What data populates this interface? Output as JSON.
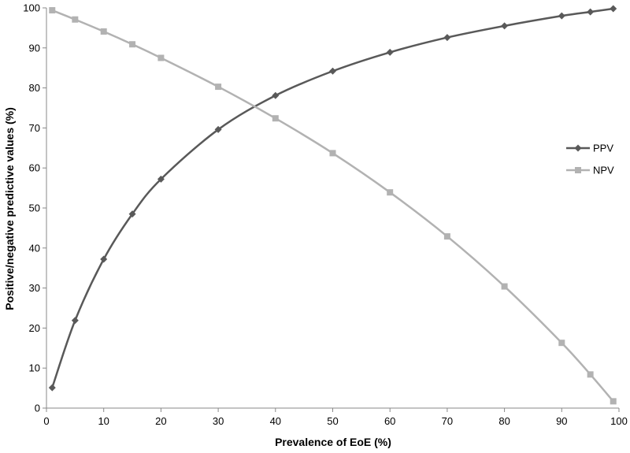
{
  "chart_data": {
    "type": "line",
    "title": "",
    "xlabel": "Prevalence of EoE (%)",
    "ylabel": "Positive/negative predictive values (%)",
    "xlim": [
      0,
      100
    ],
    "ylim": [
      0,
      100
    ],
    "xticks": [
      0,
      10,
      20,
      30,
      40,
      50,
      60,
      70,
      80,
      90,
      100
    ],
    "yticks": [
      0,
      10,
      20,
      30,
      40,
      50,
      60,
      70,
      80,
      90,
      100
    ],
    "grid": false,
    "legend_position": "right",
    "series": [
      {
        "name": "PPV",
        "color": "#595959",
        "marker": "diamond",
        "x": [
          1,
          5,
          10,
          15,
          20,
          30,
          40,
          50,
          60,
          70,
          80,
          90,
          95,
          99
        ],
        "y": [
          5.1,
          21.9,
          37.2,
          48.5,
          57.2,
          69.6,
          78.1,
          84.2,
          88.9,
          92.6,
          95.5,
          98.0,
          99.0,
          99.8
        ]
      },
      {
        "name": "NPV",
        "color": "#b2b2b2",
        "marker": "square",
        "x": [
          1,
          5,
          10,
          15,
          20,
          30,
          40,
          50,
          60,
          70,
          80,
          90,
          95,
          99
        ],
        "y": [
          99.4,
          97.1,
          94.1,
          90.9,
          87.5,
          80.3,
          72.4,
          63.7,
          53.9,
          42.9,
          30.4,
          16.3,
          8.4,
          1.7
        ]
      }
    ]
  }
}
